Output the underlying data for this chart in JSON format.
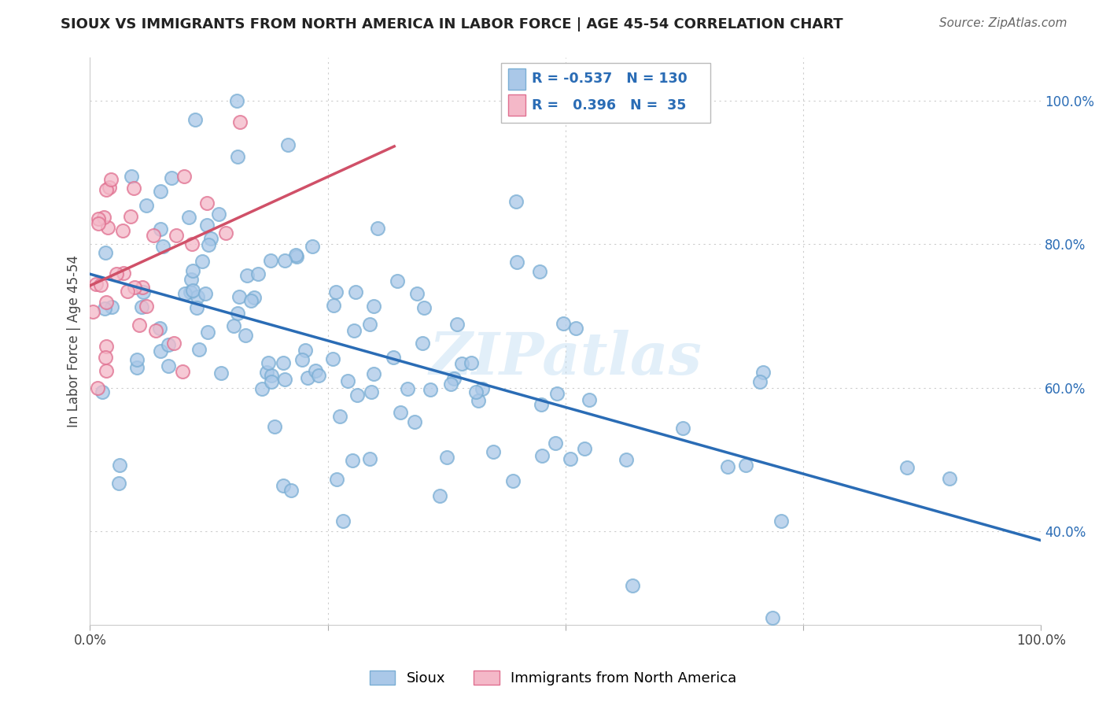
{
  "title": "SIOUX VS IMMIGRANTS FROM NORTH AMERICA IN LABOR FORCE | AGE 45-54 CORRELATION CHART",
  "source": "Source: ZipAtlas.com",
  "ylabel": "In Labor Force | Age 45-54",
  "blue_R": -0.537,
  "blue_N": 130,
  "pink_R": 0.396,
  "pink_N": 35,
  "blue_fill_color": "#aac8e8",
  "blue_edge_color": "#7aaed4",
  "pink_fill_color": "#f4b8c8",
  "pink_edge_color": "#e07090",
  "blue_line_color": "#2a6cb5",
  "pink_line_color": "#d05068",
  "legend_labels": [
    "Sioux",
    "Immigrants from North America"
  ],
  "watermark": "ZIPatlas",
  "xlim": [
    0.0,
    1.0
  ],
  "ylim": [
    0.27,
    1.06
  ],
  "ytick_positions": [
    0.4,
    0.6,
    0.8,
    1.0
  ],
  "ytick_labels": [
    "40.0%",
    "60.0%",
    "80.0%",
    "100.0%"
  ],
  "background_color": "#ffffff",
  "grid_color": "#cccccc"
}
